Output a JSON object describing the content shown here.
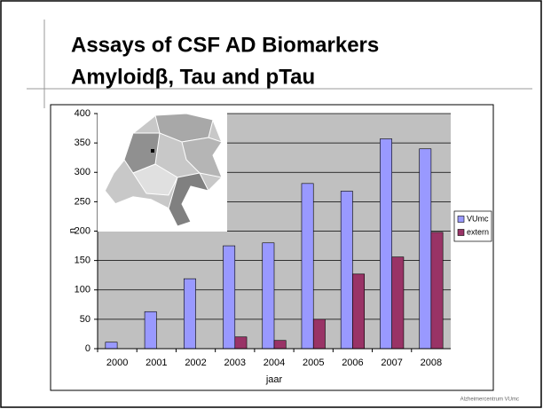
{
  "slide_title": [
    "Assays of CSF AD Biomarkers",
    "Amyloidβ, Tau and pTau"
  ],
  "logo_text": "Alzheimercentrum VUmc",
  "chart_data": {
    "type": "bar",
    "categories": [
      "2000",
      "2001",
      "2002",
      "2003",
      "2004",
      "2005",
      "2006",
      "2007",
      "2008"
    ],
    "series": [
      {
        "name": "VUmc",
        "color": "#9999ff",
        "values": [
          11,
          63,
          119,
          175,
          180,
          281,
          268,
          357,
          340
        ]
      },
      {
        "name": "extern",
        "color": "#993366",
        "values": [
          null,
          null,
          null,
          20,
          14,
          50,
          127,
          156,
          198
        ]
      }
    ],
    "xlabel": "jaar",
    "ylabel": "n",
    "ylim": [
      0,
      400
    ],
    "yticks": [
      0,
      50,
      100,
      150,
      200,
      250,
      300,
      350,
      400
    ],
    "grid": true,
    "legend": "right"
  }
}
